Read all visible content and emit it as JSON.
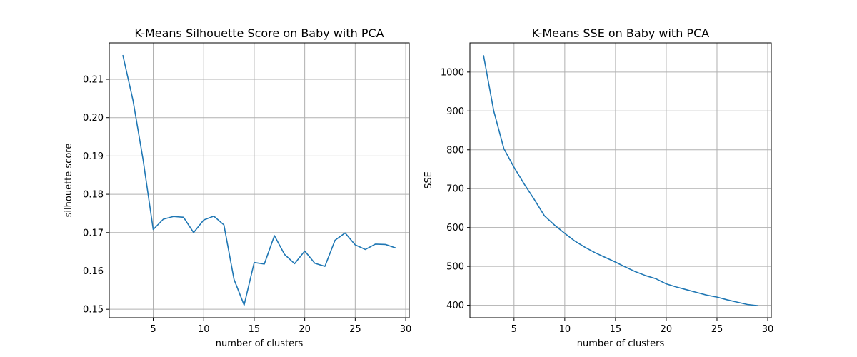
{
  "chart_data": [
    {
      "type": "line",
      "title": "K-Means Silhouette Score on Baby with PCA",
      "xlabel": "number of clusters",
      "ylabel": "silhouette score",
      "grid": true,
      "xlim": [
        0.65,
        30.35
      ],
      "ylim": [
        0.1478,
        0.2195
      ],
      "xticks": [
        5,
        10,
        15,
        20,
        25,
        30
      ],
      "xtick_labels": [
        "5",
        "10",
        "15",
        "20",
        "25",
        "30"
      ],
      "yticks": [
        0.15,
        0.16,
        0.17,
        0.18,
        0.19,
        0.2,
        0.21
      ],
      "ytick_labels": [
        "0.15",
        "0.16",
        "0.17",
        "0.18",
        "0.19",
        "0.20",
        "0.21"
      ],
      "series": [
        {
          "color": "#1f77b4",
          "x": [
            2,
            3,
            4,
            5,
            6,
            7,
            8,
            9,
            10,
            11,
            12,
            13,
            14,
            15,
            16,
            17,
            18,
            19,
            20,
            21,
            22,
            23,
            24,
            25,
            26,
            27,
            28,
            29
          ],
          "y": [
            0.2162,
            0.2045,
            0.189,
            0.1708,
            0.1735,
            0.1742,
            0.174,
            0.17,
            0.1733,
            0.1743,
            0.172,
            0.1578,
            0.1511,
            0.1622,
            0.1618,
            0.1692,
            0.1643,
            0.1619,
            0.1652,
            0.162,
            0.1612,
            0.168,
            0.1699,
            0.1668,
            0.1656,
            0.167,
            0.1669,
            0.166
          ]
        }
      ]
    },
    {
      "type": "line",
      "title": "K-Means SSE on Baby with PCA",
      "xlabel": "number of clusters",
      "ylabel": "SSE",
      "grid": true,
      "xlim": [
        0.65,
        30.35
      ],
      "ylim": [
        368,
        1075
      ],
      "xticks": [
        5,
        10,
        15,
        20,
        25,
        30
      ],
      "xtick_labels": [
        "5",
        "10",
        "15",
        "20",
        "25",
        "30"
      ],
      "yticks": [
        400,
        500,
        600,
        700,
        800,
        900,
        1000
      ],
      "ytick_labels": [
        "400",
        "500",
        "600",
        "700",
        "800",
        "900",
        "1000"
      ],
      "series": [
        {
          "color": "#1f77b4",
          "x": [
            2,
            3,
            4,
            5,
            6,
            7,
            8,
            9,
            10,
            11,
            12,
            13,
            14,
            15,
            16,
            17,
            18,
            19,
            20,
            21,
            22,
            23,
            24,
            25,
            26,
            27,
            28,
            29
          ],
          "y": [
            1042,
            900,
            803,
            755,
            712,
            672,
            630,
            606,
            585,
            565,
            549,
            535,
            523,
            511,
            498,
            486,
            476,
            468,
            455,
            447,
            440,
            433,
            426,
            421,
            414,
            408,
            402,
            399
          ]
        }
      ]
    }
  ]
}
